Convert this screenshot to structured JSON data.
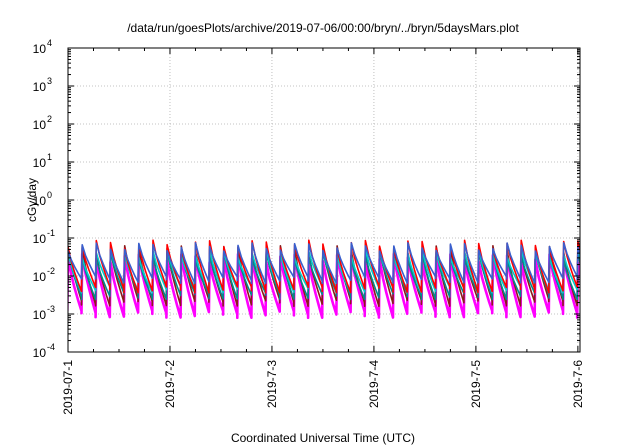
{
  "chart_data": {
    "type": "line",
    "title": "/data/run/goesPlots/archive/2019-07-06/00:00/bryn/../bryn/5daysMars.plot",
    "xlabel": "Coordinated Universal Time (UTC)",
    "ylabel": "cGy/day",
    "y_scale": "log",
    "ylim": [
      0.0001,
      10000
    ],
    "xlim": [
      "2019-07-01",
      "2019-07-06 00:30"
    ],
    "grid": true,
    "y_ticks": [
      {
        "base": "10",
        "exp": "-4"
      },
      {
        "base": "10",
        "exp": "-3"
      },
      {
        "base": "10",
        "exp": "-2"
      },
      {
        "base": "10",
        "exp": "-1"
      },
      {
        "base": "10",
        "exp": "0"
      },
      {
        "base": "10",
        "exp": "1"
      },
      {
        "base": "10",
        "exp": "2"
      },
      {
        "base": "10",
        "exp": "3"
      },
      {
        "base": "10",
        "exp": "4"
      }
    ],
    "x_ticks": [
      "2019-07-1",
      "2019-7-2",
      "2019-7-3",
      "2019-7-4",
      "2019-7-5",
      "2019-7-6"
    ],
    "sawtooth_peaks": [
      "2019-07-01 00:00",
      "2019-07-01 03:20",
      "2019-07-01 06:40",
      "2019-07-01 10:00",
      "2019-07-01 13:20",
      "2019-07-01 16:40",
      "2019-07-01 20:00",
      "2019-07-01 23:20",
      "2019-07-02 02:40",
      "2019-07-02 06:00",
      "2019-07-02 09:20",
      "2019-07-02 12:40",
      "2019-07-02 16:00",
      "2019-07-02 19:20",
      "2019-07-02 22:40",
      "2019-07-03 02:00",
      "2019-07-03 05:20",
      "2019-07-03 08:40",
      "2019-07-03 12:00",
      "2019-07-03 15:20",
      "2019-07-03 18:40",
      "2019-07-03 22:00",
      "2019-07-04 01:20",
      "2019-07-04 04:40",
      "2019-07-04 08:00",
      "2019-07-04 11:20",
      "2019-07-04 14:40",
      "2019-07-04 18:00",
      "2019-07-04 21:20",
      "2019-07-05 00:40",
      "2019-07-05 04:00",
      "2019-07-05 07:20",
      "2019-07-05 10:40",
      "2019-07-05 14:00",
      "2019-07-05 17:20",
      "2019-07-05 20:40",
      "2019-07-06 00:00"
    ],
    "series": [
      {
        "color": "#ff00ff",
        "peak": 0.03,
        "trough": 0.001
      },
      {
        "color": "#8b1a1a",
        "peak": 0.05,
        "trough": 0.002
      },
      {
        "color": "#008b8b",
        "peak": 0.035,
        "trough": 0.003
      },
      {
        "color": "#00cdcd",
        "peak": 0.04,
        "trough": 0.0045
      },
      {
        "color": "#ff0000",
        "peak": 0.07,
        "trough": 0.0045
      },
      {
        "color": "#3a5fcd",
        "peak": 0.06,
        "trough": 0.008
      }
    ]
  }
}
